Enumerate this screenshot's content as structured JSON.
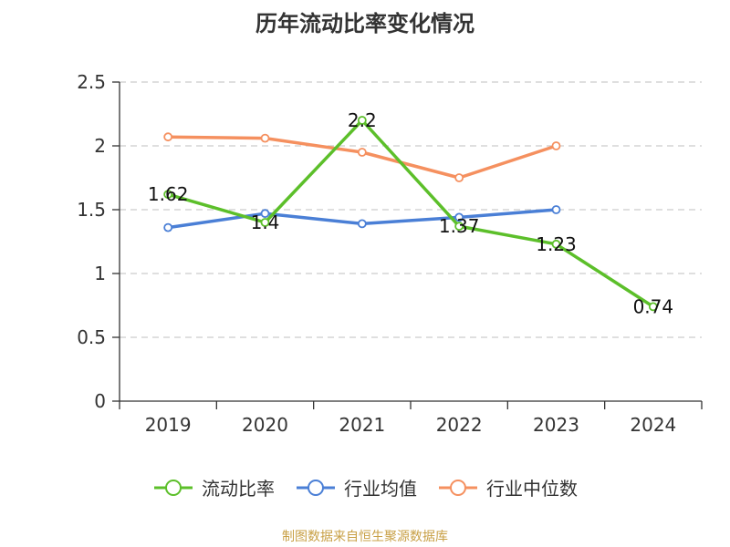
{
  "page": {
    "title": "历年流动比率变化情况",
    "source": "制图数据来自恒生聚源数据库"
  },
  "chart_data": {
    "type": "line",
    "title": "历年流动比率变化情况",
    "categories": [
      "2019",
      "2020",
      "2021",
      "2022",
      "2023",
      "2024"
    ],
    "ylim": [
      0,
      2.5
    ],
    "yticks": [
      "0",
      "0.5",
      "1",
      "1.5",
      "2",
      "2.5"
    ],
    "grid": true,
    "legend_position": "bottom",
    "series": [
      {
        "name": "流动比率",
        "color": "#5cbf2a",
        "values": [
          1.62,
          1.4,
          2.2,
          1.37,
          1.23,
          0.74
        ],
        "labels": [
          "1.62",
          "1.4",
          "2.2",
          "1.37",
          "1.23",
          "0.74"
        ]
      },
      {
        "name": "行业均值",
        "color": "#4a7fd6",
        "values": [
          1.36,
          1.47,
          1.39,
          1.44,
          1.5,
          null
        ]
      },
      {
        "name": "行业中位数",
        "color": "#f5905f",
        "values": [
          2.07,
          2.06,
          1.95,
          1.75,
          2.0,
          null
        ]
      }
    ]
  },
  "colors": {
    "title": "#333333",
    "source": "#c8a046",
    "grid": "#cccccc",
    "axis": "#333333"
  }
}
